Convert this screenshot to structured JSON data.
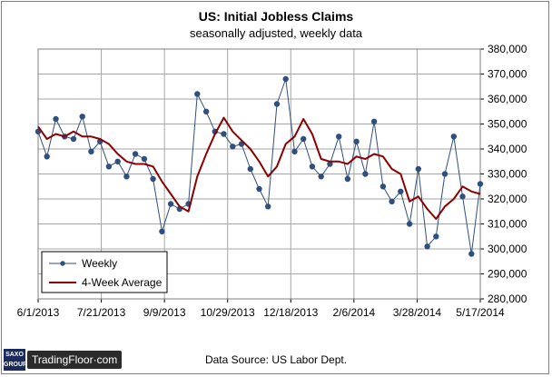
{
  "chart_data": {
    "type": "line",
    "title": "US: Initial Jobless Claims",
    "subtitle": "seasonally  adjusted,  weekly data",
    "x_tick_labels": [
      "6/1/2013",
      "7/21/2013",
      "9/9/2013",
      "10/29/2013",
      "12/18/2013",
      "2/6/2014",
      "3/28/2014",
      "5/17/2014"
    ],
    "y_tick_labels": [
      "280,000",
      "290,000",
      "300,000",
      "310,000",
      "320,000",
      "330,000",
      "340,000",
      "350,000",
      "360,000",
      "370,000",
      "380,000"
    ],
    "ylim": [
      280000,
      380000
    ],
    "y_axis_side": "right",
    "grid": true,
    "legend_position": "bottom-left",
    "series": [
      {
        "name": "Weekly",
        "color": "#2f4f7f",
        "marker": "circle",
        "x": [
          "2013-06-01",
          "2013-06-08",
          "2013-06-15",
          "2013-06-22",
          "2013-06-29",
          "2013-07-06",
          "2013-07-13",
          "2013-07-20",
          "2013-07-27",
          "2013-08-03",
          "2013-08-10",
          "2013-08-17",
          "2013-08-24",
          "2013-08-31",
          "2013-09-07",
          "2013-09-14",
          "2013-09-21",
          "2013-09-28",
          "2013-10-05",
          "2013-10-12",
          "2013-10-19",
          "2013-10-26",
          "2013-11-02",
          "2013-11-09",
          "2013-11-16",
          "2013-11-23",
          "2013-11-30",
          "2013-12-07",
          "2013-12-14",
          "2013-12-21",
          "2013-12-28",
          "2014-01-04",
          "2014-01-11",
          "2014-01-18",
          "2014-01-25",
          "2014-02-01",
          "2014-02-08",
          "2014-02-15",
          "2014-02-22",
          "2014-03-01",
          "2014-03-08",
          "2014-03-15",
          "2014-03-22",
          "2014-03-29",
          "2014-04-05",
          "2014-04-12",
          "2014-04-19",
          "2014-04-26",
          "2014-05-03",
          "2014-05-10",
          "2014-05-17"
        ],
        "values": [
          347000,
          337000,
          352000,
          345000,
          344000,
          353000,
          339000,
          343000,
          333000,
          335000,
          329000,
          338000,
          336000,
          328000,
          307000,
          318000,
          316000,
          318000,
          362000,
          355000,
          347000,
          346000,
          341000,
          342000,
          332000,
          324000,
          317000,
          358000,
          368000,
          339000,
          344000,
          333000,
          329000,
          334000,
          345000,
          328000,
          343000,
          330000,
          351000,
          325000,
          319000,
          323000,
          310000,
          332000,
          301000,
          305000,
          330000,
          345000,
          321000,
          298000,
          326000
        ]
      },
      {
        "name": "4-Week Average",
        "color": "#8b0000",
        "marker": "none",
        "x": [
          "2013-06-01",
          "2013-06-08",
          "2013-06-15",
          "2013-06-22",
          "2013-06-29",
          "2013-07-06",
          "2013-07-13",
          "2013-07-20",
          "2013-07-27",
          "2013-08-03",
          "2013-08-10",
          "2013-08-17",
          "2013-08-24",
          "2013-08-31",
          "2013-09-07",
          "2013-09-14",
          "2013-09-21",
          "2013-09-28",
          "2013-10-05",
          "2013-10-12",
          "2013-10-19",
          "2013-10-26",
          "2013-11-02",
          "2013-11-09",
          "2013-11-16",
          "2013-11-23",
          "2013-11-30",
          "2013-12-07",
          "2013-12-14",
          "2013-12-21",
          "2013-12-28",
          "2014-01-04",
          "2014-01-11",
          "2014-01-18",
          "2014-01-25",
          "2014-02-01",
          "2014-02-08",
          "2014-02-15",
          "2014-02-22",
          "2014-03-01",
          "2014-03-08",
          "2014-03-15",
          "2014-03-22",
          "2014-03-29",
          "2014-04-05",
          "2014-04-12",
          "2014-04-19",
          "2014-04-26",
          "2014-05-03",
          "2014-05-10",
          "2014-05-17"
        ],
        "values": [
          349000,
          344000,
          346000,
          345000,
          347000,
          345000,
          345000,
          344000,
          342000,
          338000,
          335000,
          334000,
          334000,
          333000,
          327000,
          322000,
          317000,
          315000,
          329000,
          338000,
          346000,
          352500,
          347000,
          343500,
          340000,
          335000,
          329000,
          333000,
          342000,
          345000,
          352000,
          346000,
          336000,
          335000,
          335000,
          334000,
          337000,
          336000,
          338000,
          337000,
          332000,
          330000,
          319000,
          321000,
          316000,
          312000,
          317000,
          320000,
          325000,
          323000,
          322000
        ]
      }
    ]
  },
  "footer": {
    "source_text": "Data Source: US Labor Dept.",
    "saxo_logo_line1": "SAXO",
    "saxo_logo_line2": "GROUP",
    "tradingfloor_logo": "TradingFloor·com"
  }
}
